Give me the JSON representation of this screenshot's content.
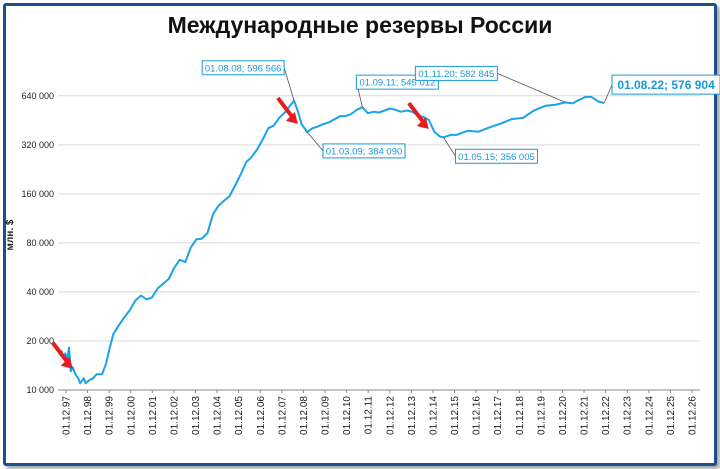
{
  "chart_data": {
    "type": "line",
    "title": "Международные резервы России",
    "ylabel": "млн. $",
    "xlabel": "",
    "y_scale": "log2",
    "ylim": [
      10000,
      800000
    ],
    "y_ticks": [
      10000,
      20000,
      40000,
      80000,
      160000,
      320000,
      640000
    ],
    "y_tick_labels": [
      "10 000",
      "20 000",
      "40 000",
      "80 000",
      "160 000",
      "320 000",
      "640 000"
    ],
    "x_tick_labels": [
      "01.12.97",
      "01.12.98",
      "01.12.99",
      "01.12.00",
      "01.12.01",
      "01.12.02",
      "01.12.03",
      "01.12.04",
      "01.12.05",
      "01.12.06",
      "01.12.07",
      "01.12.08",
      "01.12.09",
      "01.12.10",
      "01.12.11",
      "01.12.12",
      "01.12.13",
      "01.12.14",
      "01.12.15",
      "01.12.16",
      "01.12.17",
      "01.12.18",
      "01.12.19",
      "01.12.20",
      "01.12.21",
      "01.12.22",
      "01.12.23",
      "01.12.24",
      "01.12.25",
      "01.12.26"
    ],
    "xlim": [
      "1997-12-01",
      "2026-12-01"
    ],
    "grid": "horizontal",
    "line_color": "#1aa3e8",
    "arrow_color": "#e81c1c",
    "series": [
      {
        "name": "",
        "points": [
          [
            "1997-12-01",
            17800
          ],
          [
            "1998-01-01",
            16500
          ],
          [
            "1998-02-01",
            17200
          ],
          [
            "1998-03-01",
            15600
          ],
          [
            "1998-04-01",
            16800
          ],
          [
            "1998-05-01",
            15200
          ],
          [
            "1998-06-01",
            18200
          ],
          [
            "1998-07-01",
            13000
          ],
          [
            "1998-08-01",
            13800
          ],
          [
            "1998-09-01",
            12800
          ],
          [
            "1998-10-01",
            12200
          ],
          [
            "1998-11-01",
            11800
          ],
          [
            "1998-12-01",
            11000
          ],
          [
            "1999-01-01",
            11400
          ],
          [
            "1999-02-01",
            11800
          ],
          [
            "1999-03-01",
            11000
          ],
          [
            "1999-05-01",
            11500
          ],
          [
            "1999-07-01",
            11800
          ],
          [
            "1999-09-01",
            12500
          ],
          [
            "1999-12-01",
            12500
          ],
          [
            "2000-02-01",
            14500
          ],
          [
            "2000-04-01",
            18000
          ],
          [
            "2000-06-01",
            22000
          ],
          [
            "2000-09-01",
            25000
          ],
          [
            "2000-12-01",
            28000
          ],
          [
            "2001-03-01",
            31000
          ],
          [
            "2001-06-01",
            35500
          ],
          [
            "2001-09-01",
            38000
          ],
          [
            "2001-12-01",
            36000
          ],
          [
            "2002-03-01",
            37000
          ],
          [
            "2002-06-01",
            42000
          ],
          [
            "2002-09-01",
            45000
          ],
          [
            "2002-12-01",
            48000
          ],
          [
            "2003-03-01",
            56000
          ],
          [
            "2003-06-01",
            63000
          ],
          [
            "2003-09-01",
            61000
          ],
          [
            "2003-12-01",
            75000
          ],
          [
            "2004-03-01",
            84000
          ],
          [
            "2004-06-01",
            85000
          ],
          [
            "2004-09-01",
            92000
          ],
          [
            "2004-12-01",
            120000
          ],
          [
            "2005-03-01",
            135000
          ],
          [
            "2005-06-01",
            145000
          ],
          [
            "2005-09-01",
            155000
          ],
          [
            "2005-12-01",
            180000
          ],
          [
            "2006-03-01",
            210000
          ],
          [
            "2006-06-01",
            250000
          ],
          [
            "2006-09-01",
            270000
          ],
          [
            "2006-12-01",
            300000
          ],
          [
            "2007-03-01",
            345000
          ],
          [
            "2007-06-01",
            405000
          ],
          [
            "2007-09-01",
            420000
          ],
          [
            "2007-12-01",
            470000
          ],
          [
            "2008-03-01",
            505000
          ],
          [
            "2008-06-01",
            560000
          ],
          [
            "2008-08-01",
            596566
          ],
          [
            "2008-10-01",
            515000
          ],
          [
            "2008-12-01",
            430000
          ],
          [
            "2009-03-01",
            384090
          ],
          [
            "2009-06-01",
            405000
          ],
          [
            "2009-09-01",
            415000
          ],
          [
            "2009-12-01",
            430000
          ],
          [
            "2010-03-01",
            440000
          ],
          [
            "2010-06-01",
            460000
          ],
          [
            "2010-09-01",
            480000
          ],
          [
            "2010-12-01",
            480000
          ],
          [
            "2011-03-01",
            495000
          ],
          [
            "2011-06-01",
            525000
          ],
          [
            "2011-09-01",
            545012
          ],
          [
            "2011-12-01",
            500000
          ],
          [
            "2012-03-01",
            510000
          ],
          [
            "2012-06-01",
            505000
          ],
          [
            "2012-09-01",
            520000
          ],
          [
            "2012-12-01",
            535000
          ],
          [
            "2013-03-01",
            525000
          ],
          [
            "2013-06-01",
            510000
          ],
          [
            "2013-09-01",
            520000
          ],
          [
            "2013-12-01",
            510000
          ],
          [
            "2014-03-01",
            485000
          ],
          [
            "2014-06-01",
            475000
          ],
          [
            "2014-09-01",
            455000
          ],
          [
            "2014-12-01",
            385000
          ],
          [
            "2015-03-01",
            360000
          ],
          [
            "2015-05-01",
            356005
          ],
          [
            "2015-09-01",
            368000
          ],
          [
            "2015-12-01",
            368000
          ],
          [
            "2016-06-01",
            390000
          ],
          [
            "2016-12-01",
            385000
          ],
          [
            "2017-06-01",
            410000
          ],
          [
            "2017-12-01",
            432000
          ],
          [
            "2018-06-01",
            460000
          ],
          [
            "2018-12-01",
            468000
          ],
          [
            "2019-06-01",
            520000
          ],
          [
            "2019-12-01",
            555000
          ],
          [
            "2020-06-01",
            565000
          ],
          [
            "2020-11-01",
            582845
          ],
          [
            "2021-03-01",
            575000
          ],
          [
            "2021-06-01",
            600000
          ],
          [
            "2021-10-01",
            630000
          ],
          [
            "2022-01-01",
            630000
          ],
          [
            "2022-03-01",
            610000
          ],
          [
            "2022-05-01",
            590000
          ],
          [
            "2022-08-01",
            576904
          ]
        ]
      }
    ],
    "annotations": [
      {
        "date": "2008-08-01",
        "value": 596566,
        "label": "01.08.08; 596 566"
      },
      {
        "date": "2009-03-01",
        "value": 384090,
        "label": "01.03.09; 384 090"
      },
      {
        "date": "2011-09-01",
        "value": 545012,
        "label": "01.09.11; 545 012"
      },
      {
        "date": "2015-05-01",
        "value": 356005,
        "label": "01.05.15; 356 005"
      },
      {
        "date": "2020-11-01",
        "value": 582845,
        "label": "01.11.20; 582 845"
      },
      {
        "date": "2022-08-01",
        "value": 576904,
        "label": "01.08.22; 576 904",
        "emphasis": true
      }
    ],
    "arrows": [
      {
        "date": "1998-08-01",
        "value": 13500
      },
      {
        "date": "2008-10-01",
        "value": 430000
      },
      {
        "date": "2014-09-01",
        "value": 400000
      }
    ]
  }
}
